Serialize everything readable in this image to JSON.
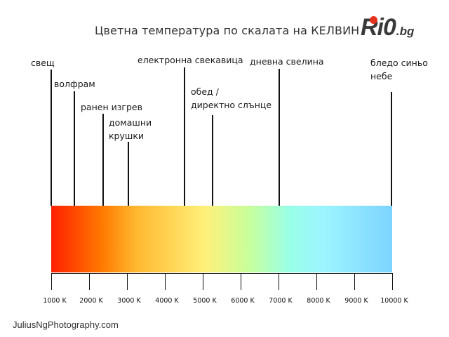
{
  "title": "Цветна температура по скалата на КЕЛВИН",
  "logo": {
    "text": "Ri0",
    "suffix": ".bg",
    "dot_color": "#e5321f"
  },
  "sources": [
    {
      "name": "свещ"
    },
    {
      "name": "волфрам"
    },
    {
      "name": "ранен изгрев"
    },
    {
      "line1": "домашни",
      "line2": "крушки"
    },
    {
      "name": "електронна свекавица"
    },
    {
      "line1": "обед /",
      "line2": "директно слънце"
    },
    {
      "name": "дневна свелина"
    },
    {
      "line1": "бледо синьо",
      "line2": "небе"
    }
  ],
  "scale": {
    "ticks": [
      "1000 K",
      "2000 K",
      "3000 K",
      "4000 K",
      "5000 K",
      "6000 K",
      "7000 K",
      "8000 K",
      "9000 K",
      "10000 K"
    ],
    "gradient_colors": [
      "#ff2000",
      "#ff7a00",
      "#ffb830",
      "#fff07a",
      "#c8ff9c",
      "#99ffe8",
      "#9cf4ff",
      "#7dd4ff"
    ]
  },
  "credit": "JuliusNgPhotography.com"
}
